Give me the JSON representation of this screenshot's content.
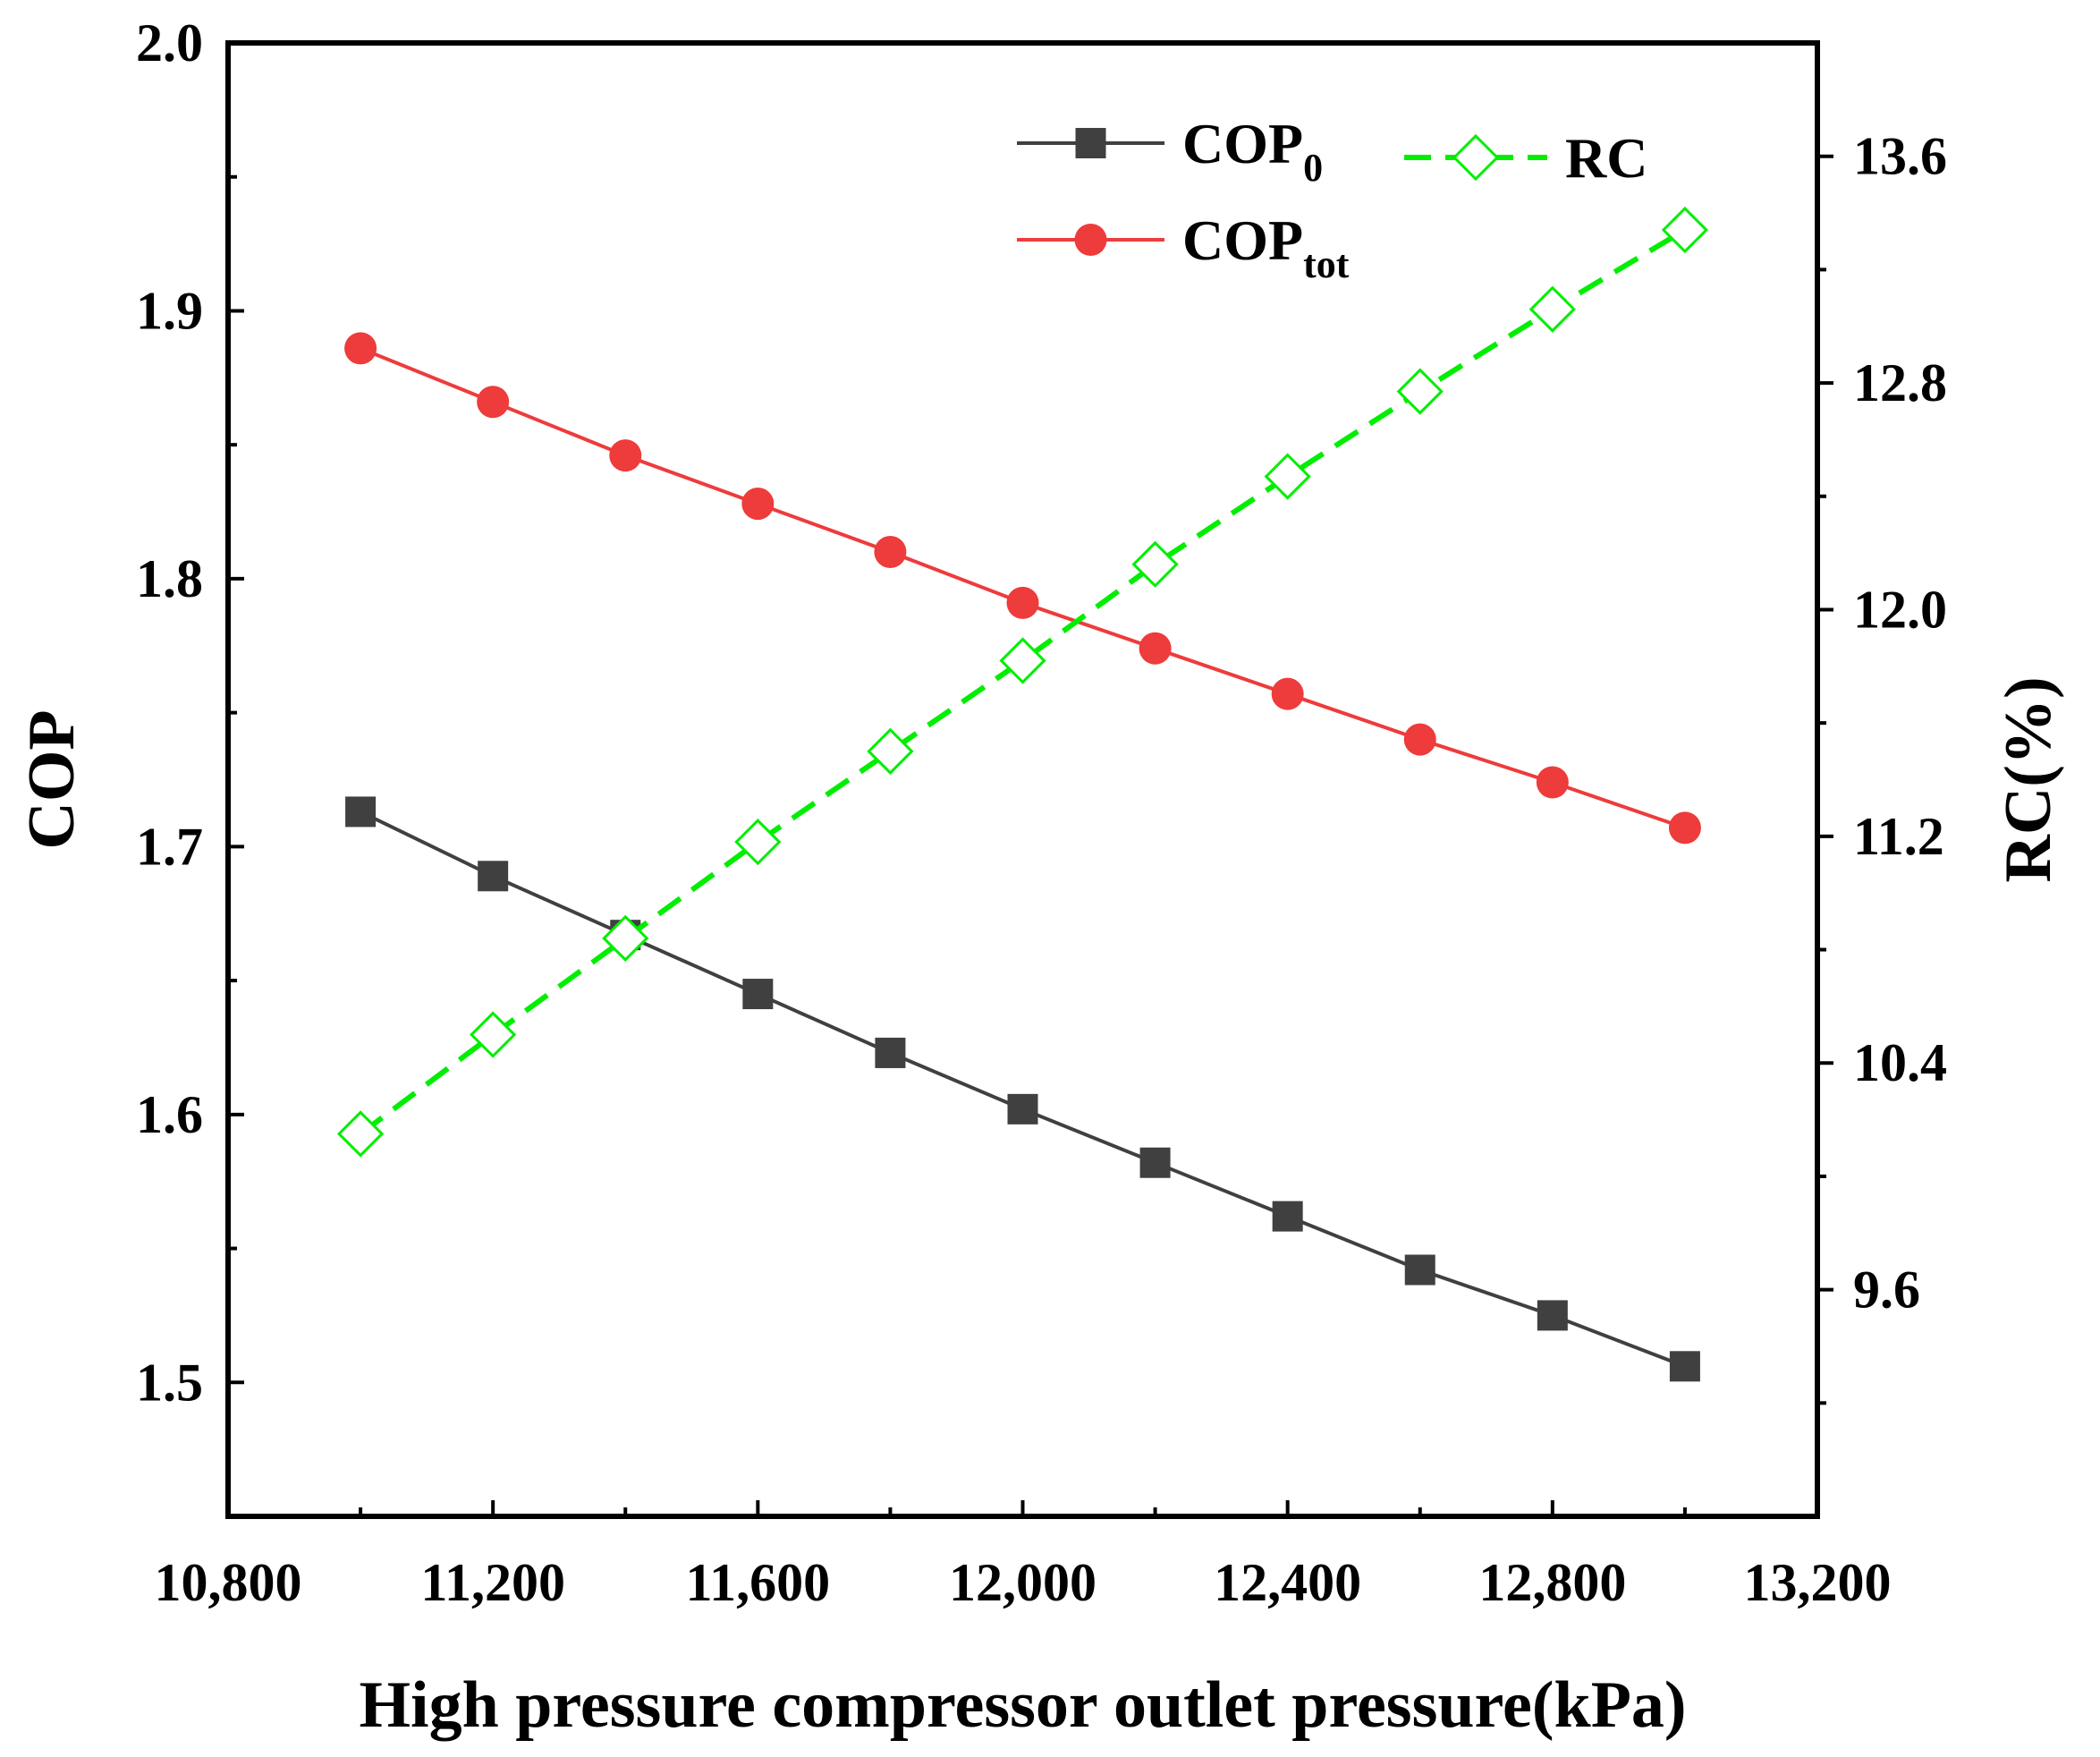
{
  "chart_data": {
    "type": "line",
    "x_axis": {
      "label": "High pressure compressor outlet pressure(kPa)",
      "range": [
        10800,
        13200
      ],
      "ticks": [
        10800,
        11200,
        11600,
        12000,
        12400,
        12800,
        13200
      ],
      "tick_labels": [
        "10,800",
        "11,200",
        "11,600",
        "12,000",
        "12,400",
        "12,800",
        "13,200"
      ]
    },
    "y_axis_left": {
      "label": "COP",
      "range": [
        1.45,
        2.0
      ],
      "ticks": [
        1.5,
        1.6,
        1.7,
        1.8,
        1.9,
        2.0
      ],
      "tick_labels": [
        "1.5",
        "1.6",
        "1.7",
        "1.8",
        "1.9",
        "2.0"
      ]
    },
    "y_axis_right": {
      "label": "RC(%)",
      "range": [
        8.8,
        14.0
      ],
      "ticks": [
        9.6,
        10.4,
        11.2,
        12.0,
        12.8,
        13.6
      ],
      "tick_labels": [
        "9.6",
        "10.4",
        "11.2",
        "12.0",
        "12.8",
        "13.6"
      ]
    },
    "x": [
      11000,
      11200,
      11400,
      11600,
      11800,
      12000,
      12200,
      12400,
      12600,
      12800,
      13000
    ],
    "series": [
      {
        "name": "COP0",
        "legend_main": "COP",
        "legend_sub": "0",
        "axis": "left",
        "color": "#404040",
        "marker": "square-filled",
        "line": "solid",
        "values": [
          1.713,
          1.689,
          1.667,
          1.645,
          1.623,
          1.602,
          1.582,
          1.562,
          1.542,
          1.525,
          1.506
        ]
      },
      {
        "name": "COPtot",
        "legend_main": "COP",
        "legend_sub": "tot",
        "axis": "left",
        "color": "#ee3b3b",
        "marker": "circle-filled",
        "line": "solid",
        "values": [
          1.886,
          1.866,
          1.846,
          1.828,
          1.81,
          1.791,
          1.774,
          1.757,
          1.74,
          1.724,
          1.707
        ]
      },
      {
        "name": "RC",
        "legend_main": "RC",
        "legend_sub": "",
        "axis": "right",
        "color": "#00ee00",
        "marker": "diamond-open",
        "line": "dashed",
        "values": [
          10.15,
          10.5,
          10.84,
          11.18,
          11.5,
          11.82,
          12.16,
          12.47,
          12.77,
          13.06,
          13.34
        ]
      }
    ],
    "legend_position": "top-right inside",
    "grid": false
  }
}
